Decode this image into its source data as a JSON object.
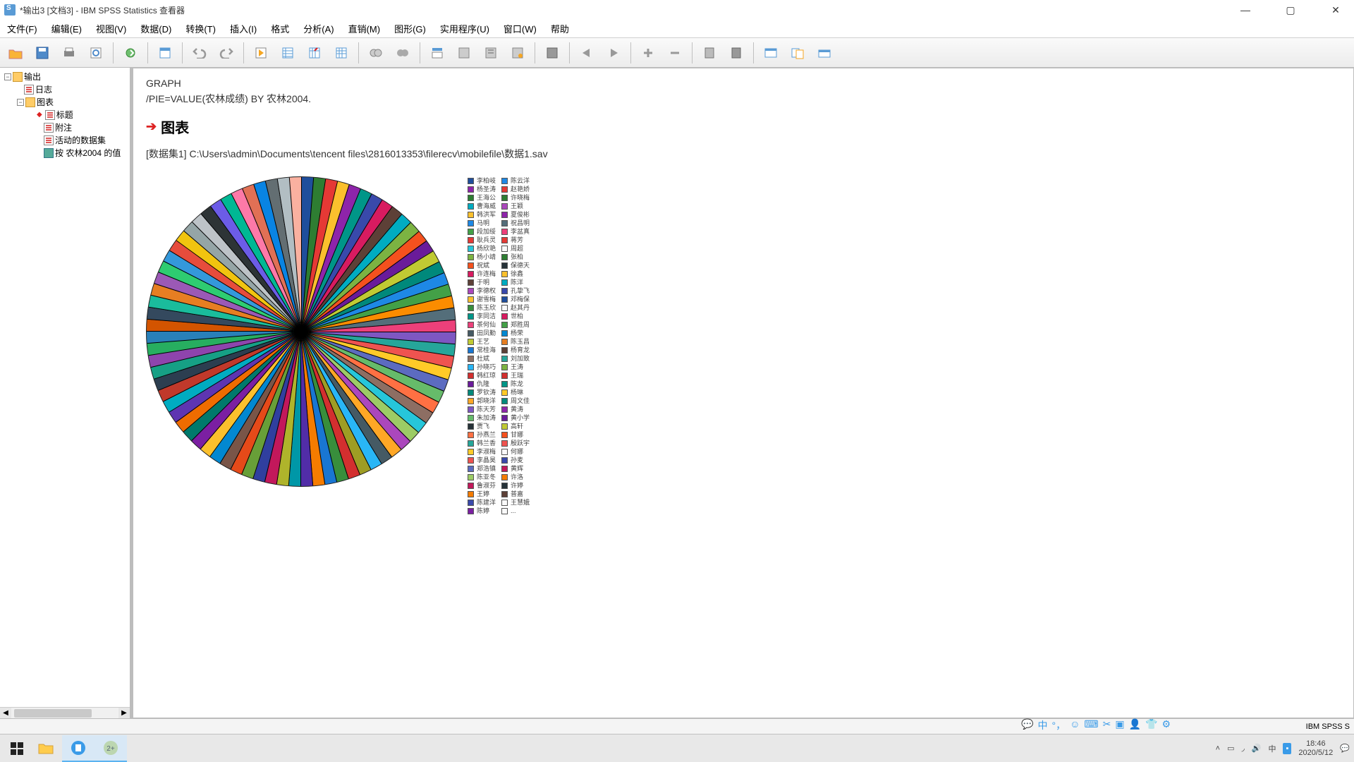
{
  "titlebar": {
    "title": "*输出3 [文档3] - IBM SPSS Statistics 查看器"
  },
  "menu": {
    "items": [
      "文件(F)",
      "编辑(E)",
      "视图(V)",
      "数据(D)",
      "转换(T)",
      "插入(I)",
      "格式",
      "分析(A)",
      "直销(M)",
      "图形(G)",
      "实用程序(U)",
      "窗口(W)",
      "帮助"
    ]
  },
  "tree": {
    "root": "输出",
    "log": "日志",
    "chart_folder": "图表",
    "title_item": "标题",
    "notes": "附注",
    "active_ds": "活动的数据集",
    "by_value": "按 农林2004 的值"
  },
  "syntax": {
    "line1": "GRAPH",
    "line2": "  /PIE=VALUE(农林成绩) BY 农林2004."
  },
  "chart": {
    "heading": "图表",
    "dataset_path": "[数据集1] C:\\Users\\admin\\Documents\\tencent files\\2816013353\\filerecv\\mobilefile\\数据1.sav",
    "slice_colors": [
      "#1f4e9c",
      "#2e7d32",
      "#e53935",
      "#fbc02d",
      "#8e24aa",
      "#009688",
      "#3949ab",
      "#d81b60",
      "#5d4037",
      "#00acc1",
      "#7cb342",
      "#f4511e",
      "#6a1b9a",
      "#c0ca33",
      "#00897b",
      "#1e88e5",
      "#43a047",
      "#fb8c00",
      "#546e7a",
      "#ec407a",
      "#7e57c2",
      "#26a69a",
      "#ef5350",
      "#ffca28",
      "#5c6bc0",
      "#66bb6a",
      "#ff7043",
      "#8d6e63",
      "#26c6da",
      "#9ccc65",
      "#ab47bc",
      "#ffa726",
      "#455a64",
      "#29b6f6",
      "#9e9d24",
      "#d32f2f",
      "#388e3c",
      "#1976d2",
      "#f57c00",
      "#512da8",
      "#0097a7",
      "#afb42b",
      "#c2185b",
      "#303f9f",
      "#689f38",
      "#e64a19",
      "#795548",
      "#0288d1",
      "#fbc02d",
      "#7b1fa2",
      "#00796b",
      "#ef6c00",
      "#5e35b1",
      "#00acc1",
      "#c0392b",
      "#2c3e50",
      "#16a085",
      "#8e44ad",
      "#27ae60",
      "#2980b9",
      "#d35400",
      "#34495e",
      "#1abc9c",
      "#e67e22",
      "#9b59b6",
      "#2ecc71",
      "#3498db",
      "#e74c3c",
      "#f1c40f",
      "#95a5a6",
      "#bdc3c7",
      "#2d3436",
      "#6c5ce7",
      "#00b894",
      "#fd79a8",
      "#e17055",
      "#0984e3",
      "#636e72",
      "#b2bec3",
      "#fab1a0"
    ],
    "legend_col1": [
      {
        "c": "#1f4e9c",
        "t": "李柏岐"
      },
      {
        "c": "#8e24aa",
        "t": "杨圣涛"
      },
      {
        "c": "#2e7d32",
        "t": "王海公"
      },
      {
        "c": "#00acc1",
        "t": "曹海威"
      },
      {
        "c": "#fbc02d",
        "t": "韩洪军"
      },
      {
        "c": "#1e88e5",
        "t": "马明"
      },
      {
        "c": "#43a047",
        "t": "段加绥"
      },
      {
        "c": "#e53935",
        "t": "耿兵灵"
      },
      {
        "c": "#26c6da",
        "t": "杨欣艳"
      },
      {
        "c": "#7cb342",
        "t": "杨小靖"
      },
      {
        "c": "#f4511e",
        "t": "祝斌"
      },
      {
        "c": "#d81b60",
        "t": "许连梅"
      },
      {
        "c": "#5d4037",
        "t": "于明"
      },
      {
        "c": "#ab47bc",
        "t": "李德权"
      },
      {
        "c": "#fbc02d",
        "t": "谢雪梅"
      },
      {
        "c": "#388e3c",
        "t": "陈玉欣"
      },
      {
        "c": "#009688",
        "t": "李同洁"
      },
      {
        "c": "#ec407a",
        "t": "茶何仙"
      },
      {
        "c": "#455a64",
        "t": "田凤勤"
      },
      {
        "c": "#c0ca33",
        "t": "王艺"
      },
      {
        "c": "#1976d2",
        "t": "常桂海"
      },
      {
        "c": "#8d6e63",
        "t": "杜斌"
      },
      {
        "c": "#29b6f6",
        "t": "孙晓巧"
      },
      {
        "c": "#d32f2f",
        "t": "韩红琼"
      },
      {
        "c": "#6a1b9a",
        "t": "仇隆"
      },
      {
        "c": "#00897b",
        "t": "罗钦涛"
      },
      {
        "c": "#ffa726",
        "t": "郭晓洋"
      },
      {
        "c": "#7e57c2",
        "t": "陈天芳"
      },
      {
        "c": "#66bb6a",
        "t": "朱加涛"
      },
      {
        "c": "#263238",
        "t": "贾飞"
      },
      {
        "c": "#ff7043",
        "t": "孙燕兰"
      },
      {
        "c": "#26a69a",
        "t": "韩兰香"
      },
      {
        "c": "#ffca28",
        "t": "李淑梅"
      },
      {
        "c": "#ef5350",
        "t": "李晶昊"
      },
      {
        "c": "#5c6bc0",
        "t": "郑浩镇"
      },
      {
        "c": "#9ccc65",
        "t": "陈亚冬"
      },
      {
        "c": "#c2185b",
        "t": "鲁淑芬"
      },
      {
        "c": "#f57c00",
        "t": "王婷"
      },
      {
        "c": "#3949ab",
        "t": "陈建洋"
      },
      {
        "c": "#7b1fa2",
        "t": "陈婷"
      }
    ],
    "legend_col2": [
      {
        "c": "#1e88e5",
        "t": "陈云洋"
      },
      {
        "c": "#e53935",
        "t": "赵艳娇"
      },
      {
        "c": "#2e7d32",
        "t": "许晓梅"
      },
      {
        "c": "#ab47bc",
        "t": "王颖"
      },
      {
        "c": "#8e24aa",
        "t": "夏俊彬"
      },
      {
        "c": "#546e7a",
        "t": "祝昌明"
      },
      {
        "c": "#ec407a",
        "t": "李盆真"
      },
      {
        "c": "#e53935",
        "t": "蒋芳"
      },
      {
        "c": "#fafafa",
        "t": "周超"
      },
      {
        "c": "#2e7d32",
        "t": "张柏"
      },
      {
        "c": "#263238",
        "t": "保德天"
      },
      {
        "c": "#fbc02d",
        "t": "徐鑫"
      },
      {
        "c": "#00acc1",
        "t": "陈洋"
      },
      {
        "c": "#3949ab",
        "t": "孔挚飞"
      },
      {
        "c": "#1f4e9c",
        "t": "邓梅保"
      },
      {
        "c": "#fafafa",
        "t": "赵其丹"
      },
      {
        "c": "#d81b60",
        "t": "世柏"
      },
      {
        "c": "#43a047",
        "t": "郑胜周"
      },
      {
        "c": "#0288d1",
        "t": "杨荣"
      },
      {
        "c": "#e67e22",
        "t": "陈玉昌"
      },
      {
        "c": "#5d4037",
        "t": "杨育龙"
      },
      {
        "c": "#26a69a",
        "t": "刘加致"
      },
      {
        "c": "#7cb342",
        "t": "王涛"
      },
      {
        "c": "#d32f2f",
        "t": "王瑞"
      },
      {
        "c": "#009688",
        "t": "陈龙"
      },
      {
        "c": "#ffca28",
        "t": "杨琳"
      },
      {
        "c": "#00897b",
        "t": "周文佳"
      },
      {
        "c": "#8e24aa",
        "t": "黄涛"
      },
      {
        "c": "#6a1b9a",
        "t": "黄小学"
      },
      {
        "c": "#c0ca33",
        "t": "高轩"
      },
      {
        "c": "#f4511e",
        "t": "甘娜"
      },
      {
        "c": "#ef5350",
        "t": "殷跃宇"
      },
      {
        "c": "#fafafa",
        "t": "何娜"
      },
      {
        "c": "#3949ab",
        "t": "孙麦"
      },
      {
        "c": "#c2185b",
        "t": "黄辉"
      },
      {
        "c": "#f57c00",
        "t": "许洛"
      },
      {
        "c": "#263238",
        "t": "许婷"
      },
      {
        "c": "#5d4037",
        "t": "普嘉"
      },
      {
        "c": "#fafafa",
        "t": "王慧娥"
      },
      {
        "c": "#fafafa",
        "t": "..."
      }
    ]
  },
  "statusbar": {
    "processor": "IBM SPSS S"
  },
  "taskbar": {
    "time": "18:46",
    "date": "2020/5/12"
  }
}
